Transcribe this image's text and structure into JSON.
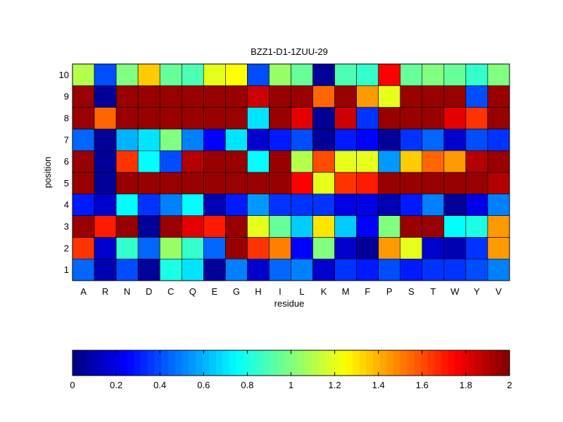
{
  "chart_data": {
    "type": "heatmap",
    "title": "BZZ1-D1-1ZUU-29",
    "xlabel": "residue",
    "ylabel": "position",
    "x_categories": [
      "A",
      "R",
      "N",
      "D",
      "C",
      "Q",
      "E",
      "G",
      "H",
      "I",
      "L",
      "K",
      "M",
      "F",
      "P",
      "S",
      "T",
      "W",
      "Y",
      "V"
    ],
    "y_categories": [
      "1",
      "2",
      "3",
      "4",
      "5",
      "6",
      "7",
      "8",
      "9",
      "10"
    ],
    "values": [
      [
        0.45,
        0.1,
        0.4,
        0.05,
        0.8,
        0.7,
        0.05,
        0.5,
        0.15,
        0.45,
        0.5,
        0.15,
        0.35,
        0.3,
        0.4,
        0.3,
        0.35,
        0.35,
        0.4,
        0.5
      ],
      [
        1.65,
        0.15,
        0.85,
        0.45,
        1.05,
        0.85,
        0.45,
        1.95,
        1.65,
        1.5,
        0.25,
        1.0,
        0.15,
        0.05,
        1.45,
        1.2,
        0.15,
        0.1,
        0.35,
        1.45
      ],
      [
        1.95,
        1.7,
        1.95,
        0.05,
        1.95,
        1.8,
        1.7,
        1.95,
        1.2,
        0.95,
        0.65,
        1.3,
        0.65,
        0.25,
        1.0,
        1.95,
        1.95,
        0.75,
        0.8,
        1.45
      ],
      [
        0.3,
        0.15,
        0.75,
        0.35,
        0.5,
        0.75,
        0.1,
        0.3,
        0.55,
        0.35,
        0.35,
        0.35,
        0.2,
        0.2,
        0.1,
        0.3,
        0.5,
        0.05,
        0.2,
        0.5
      ],
      [
        1.95,
        0.05,
        1.95,
        1.95,
        1.95,
        1.95,
        1.95,
        1.95,
        1.95,
        1.95,
        1.75,
        1.2,
        1.65,
        1.7,
        1.95,
        1.95,
        1.95,
        1.95,
        1.95,
        1.9
      ],
      [
        1.95,
        0.05,
        1.65,
        0.75,
        0.4,
        1.9,
        1.95,
        1.95,
        0.75,
        1.95,
        1.1,
        1.6,
        1.2,
        1.2,
        0.55,
        1.35,
        1.55,
        1.45,
        1.9,
        1.95
      ],
      [
        0.45,
        0.05,
        0.6,
        0.7,
        1.0,
        0.5,
        0.25,
        0.7,
        0.15,
        0.3,
        0.4,
        0.05,
        0.3,
        0.25,
        0.05,
        0.35,
        0.45,
        0.15,
        0.4,
        0.35
      ],
      [
        1.95,
        1.55,
        1.95,
        1.95,
        1.95,
        1.95,
        1.95,
        1.95,
        0.7,
        1.95,
        1.8,
        0.05,
        1.85,
        0.35,
        1.95,
        1.95,
        1.95,
        1.8,
        1.65,
        1.95
      ],
      [
        1.95,
        0.05,
        1.95,
        1.95,
        1.95,
        1.95,
        1.95,
        1.95,
        1.85,
        1.95,
        1.95,
        1.55,
        1.95,
        1.45,
        1.2,
        1.95,
        1.95,
        1.95,
        0.4,
        1.95
      ],
      [
        1.1,
        0.4,
        1.0,
        1.35,
        0.95,
        0.9,
        1.2,
        1.25,
        0.4,
        1.05,
        0.95,
        0.05,
        0.9,
        0.85,
        1.75,
        0.95,
        1.0,
        0.95,
        0.85,
        1.0
      ]
    ],
    "colorbar": {
      "colormap": "jet",
      "range": [
        0,
        2
      ],
      "ticks": [
        "0",
        "0.2",
        "0.4",
        "0.6",
        "0.8",
        "1",
        "1.2",
        "1.4",
        "1.6",
        "1.8",
        "2"
      ],
      "orientation": "horizontal",
      "placement": "bottom"
    },
    "grid": false,
    "legend": "none"
  }
}
